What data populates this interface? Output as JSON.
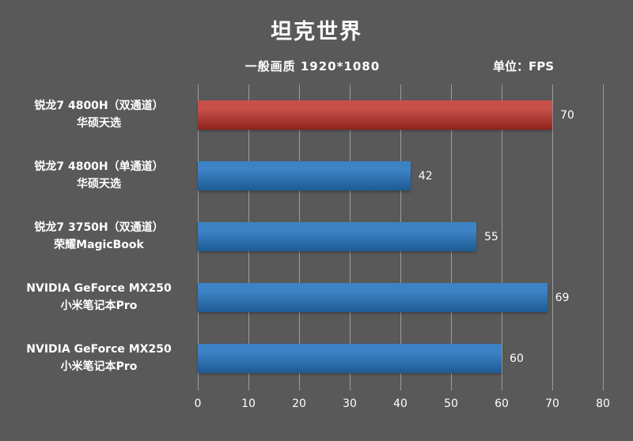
{
  "chart_data": {
    "type": "bar",
    "orientation": "horizontal",
    "title": "坦克世界",
    "subtitle": "一般画质 1920*1080",
    "unit_label": "单位：FPS",
    "categories": [
      [
        "锐龙7 4800H（双通道）",
        "华硕天选"
      ],
      [
        "锐龙7 4800H（单通道）",
        "华硕天选"
      ],
      [
        "锐龙7 3750H（双通道）",
        "荣耀MagicBook"
      ],
      [
        "NVIDIA GeForce MX250",
        "小米笔记本Pro"
      ],
      [
        "NVIDIA GeForce MX250",
        "小米笔记本Pro"
      ]
    ],
    "values": [
      70,
      42,
      55,
      69,
      60
    ],
    "highlight_index": 0,
    "bar_fill": [
      {
        "top": "#c7514a",
        "bottom": "#8e221c"
      },
      {
        "top": "#3c82c4",
        "bottom": "#1d5a94"
      },
      {
        "top": "#3c82c4",
        "bottom": "#1d5a94"
      },
      {
        "top": "#3c82c4",
        "bottom": "#1d5a94"
      },
      {
        "top": "#3c82c4",
        "bottom": "#1d5a94"
      }
    ],
    "xlim": [
      0,
      80
    ],
    "xticks": [
      0,
      10,
      20,
      30,
      40,
      50,
      60,
      70,
      80
    ],
    "grid": true,
    "legend": "none",
    "colors": {
      "background": "#595959",
      "text": "#ffffff",
      "gridline": "#9d9d9d",
      "highlight_bar": "#b23a32",
      "normal_bar": "#2e74b5"
    }
  }
}
